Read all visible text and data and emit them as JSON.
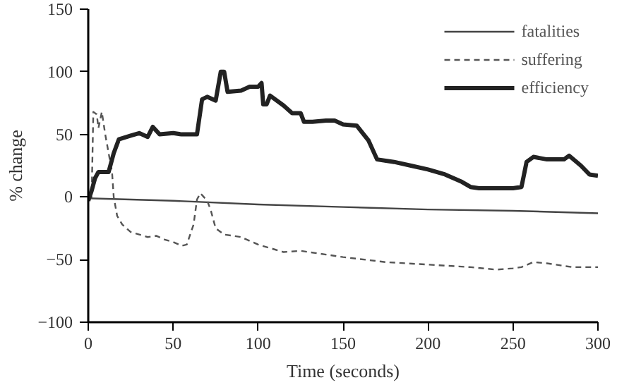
{
  "chart_data": {
    "type": "line",
    "xlabel": "Time (seconds)",
    "ylabel": "% change",
    "xlim": [
      0,
      300
    ],
    "xticks": [
      0,
      50,
      100,
      150,
      200,
      250,
      300
    ],
    "ylim": [
      -100,
      150
    ],
    "yticks": [
      -100,
      -50,
      0,
      50,
      100,
      150
    ],
    "grid": false,
    "legend": "top right",
    "marker": "none",
    "series": [
      {
        "name": "fatalities",
        "color": "#444444",
        "line_style": "solid",
        "x": [
          0,
          50,
          100,
          150,
          200,
          250,
          300
        ],
        "values": [
          -1,
          -3,
          -6,
          -8,
          -10,
          -11,
          -13
        ]
      },
      {
        "name": "suffering",
        "color": "#555555",
        "line_style": "dashed",
        "x": [
          0,
          2,
          3,
          5,
          6,
          8,
          10,
          12,
          14,
          15,
          17,
          20,
          25,
          30,
          35,
          40,
          45,
          50,
          55,
          58,
          62,
          64,
          66,
          68,
          70,
          72,
          75,
          80,
          90,
          100,
          110,
          115,
          125,
          140,
          150,
          175,
          200,
          225,
          240,
          250,
          255,
          262,
          270,
          285,
          300
        ],
        "values": [
          -3,
          0,
          68,
          66,
          55,
          68,
          50,
          35,
          20,
          0,
          -15,
          -22,
          -28,
          -30,
          -32,
          -31,
          -34,
          -36,
          -39,
          -38,
          -22,
          -2,
          3,
          0,
          -3,
          -10,
          -25,
          -30,
          -32,
          -38,
          -42,
          -44,
          -43,
          -46,
          -48,
          -52,
          -54,
          -56,
          -58,
          -57,
          -56,
          -52,
          -53,
          -56,
          -56
        ]
      },
      {
        "name": "efficiency",
        "color": "#222222",
        "line_style": "solid",
        "x": [
          0,
          2,
          4,
          6,
          12,
          15,
          18,
          25,
          30,
          35,
          38,
          42,
          50,
          55,
          64,
          67,
          70,
          75,
          78,
          80,
          82,
          90,
          95,
          100,
          102,
          103,
          105,
          107,
          115,
          120,
          125,
          127,
          132,
          140,
          145,
          150,
          158,
          165,
          170,
          180,
          190,
          200,
          210,
          220,
          225,
          230,
          240,
          250,
          255,
          258,
          262,
          270,
          280,
          283,
          290,
          295,
          300
        ],
        "values": [
          -3,
          5,
          15,
          20,
          20,
          35,
          46,
          49,
          51,
          48,
          56,
          50,
          51,
          50,
          50,
          78,
          80,
          77,
          100,
          100,
          84,
          85,
          88,
          88,
          91,
          74,
          74,
          81,
          73,
          67,
          67,
          60,
          60,
          61,
          61,
          58,
          57,
          45,
          30,
          28,
          25,
          22,
          18,
          12,
          8,
          7,
          7,
          7,
          8,
          28,
          32,
          30,
          30,
          33,
          25,
          18,
          17
        ]
      }
    ]
  }
}
